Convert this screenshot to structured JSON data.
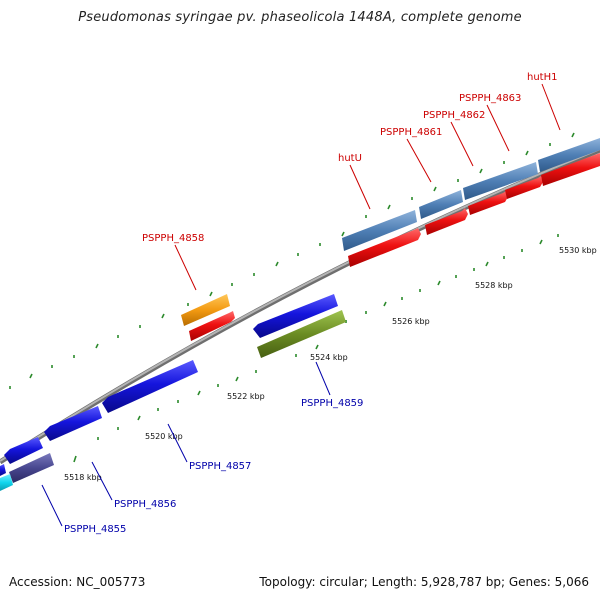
{
  "title": "Pseudomonas syringae pv. phaseolicola 1448A, complete genome",
  "footer": {
    "accession": "Accession: NC_005773",
    "summary": "Topology: circular; Length: 5,928,787 bp; Genes: 5,066"
  },
  "ticks": [
    "5518 kbp",
    "5520 kbp",
    "5522 kbp",
    "5524 kbp",
    "5526 kbp",
    "5528 kbp",
    "5530 kbp"
  ],
  "genes": [
    {
      "label": "PSPPH_4855",
      "color": "#0000aa"
    },
    {
      "label": "PSPPH_4856",
      "color": "#0000aa"
    },
    {
      "label": "PSPPH_4857",
      "color": "#0000aa"
    },
    {
      "label": "PSPPH_4858",
      "color": "#cc0000"
    },
    {
      "label": "PSPPH_4859",
      "color": "#0000aa"
    },
    {
      "label": "hutU",
      "color": "#cc0000"
    },
    {
      "label": "PSPPH_4861",
      "color": "#cc0000"
    },
    {
      "label": "PSPPH_4862",
      "color": "#cc0000"
    },
    {
      "label": "PSPPH_4863",
      "color": "#cc0000"
    },
    {
      "label": "hutH1",
      "color": "#cc0000"
    }
  ],
  "colors": {
    "backbone": "#8c8c8c",
    "forward_cds": "#ee1111",
    "reverse_cds": "#1515dd",
    "feature_steelblue": "#4f7fb5",
    "feature_orange": "#f39a12",
    "feature_olive": "#6b8c23",
    "feature_slate": "#48478f",
    "feature_cyan": "#11d6ee",
    "tick": "#2c8a2c"
  }
}
